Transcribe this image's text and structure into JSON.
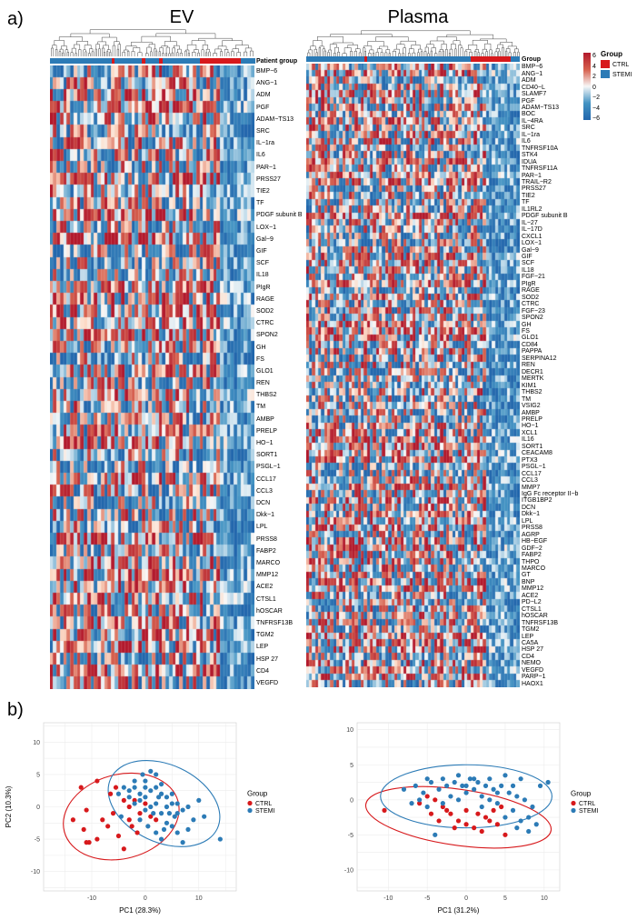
{
  "panel_a": {
    "label": "a)",
    "ev_title": "EV",
    "plasma_title": "Plasma"
  },
  "panel_b": {
    "label": "b)"
  },
  "ev_header": "Patient group",
  "plasma_header": "Group",
  "heat_legend": {
    "title": "Group",
    "ticks": [
      "6",
      "4",
      "2",
      "0",
      "−2",
      "−4",
      "−6"
    ],
    "items": [
      {
        "name": "CTRL",
        "color": "#d7191c"
      },
      {
        "name": "STEMI",
        "color": "#2c7bb6"
      }
    ]
  },
  "colors": {
    "ctrl": "#d7191c",
    "stemi": "#2c7bb6",
    "pos": "#b2182b",
    "neg": "#2166ac"
  },
  "chart_data": [
    {
      "type": "heatmap",
      "title": "EV",
      "column_annotation": "Patient group",
      "rows": [
        "BMP−6",
        "ANG−1",
        "ADM",
        "PGF",
        "ADAM−TS13",
        "SRC",
        "IL−1ra",
        "IL6",
        "PAR−1",
        "PRSS27",
        "TIE2",
        "TF",
        "PDGF subunit B",
        "LOX−1",
        "Gal−9",
        "GIF",
        "SCF",
        "IL18",
        "PIgR",
        "RAGE",
        "SOD2",
        "CTRC",
        "SPON2",
        "GH",
        "FS",
        "GLO1",
        "REN",
        "THBS2",
        "TM",
        "AMBP",
        "PRELP",
        "HO−1",
        "SORT1",
        "PSGL−1",
        "CCL17",
        "CCL3",
        "DCN",
        "Dkk−1",
        "LPL",
        "PRSS8",
        "FABP2",
        "MARCO",
        "MMP12",
        "ACE2",
        "CTSL1",
        "hOSCAR",
        "TNFRSF13B",
        "TGM2",
        "LEP",
        "HSP 27",
        "CD4",
        "VEGFD"
      ]
    },
    {
      "type": "heatmap",
      "title": "Plasma",
      "column_annotation": "Group",
      "rows": [
        "BMP−6",
        "ANG−1",
        "ADM",
        "CD40−L",
        "SLAMF7",
        "PGF",
        "ADAM−TS13",
        "BOC",
        "IL−4RA",
        "SRC",
        "IL−1ra",
        "IL6",
        "TNFRSF10A",
        "STK4",
        "IDUA",
        "TNFRSF11A",
        "PAR−1",
        "TRAIL−R2",
        "PRSS27",
        "TIE2",
        "TF",
        "IL1RL2",
        "PDGF subunit B",
        "IL−27",
        "IL−17D",
        "CXCL1",
        "LOX−1",
        "Gal−9",
        "GIF",
        "SCF",
        "IL18",
        "FGF−21",
        "PIgR",
        "RAGE",
        "SOD2",
        "CTRC",
        "FGF−23",
        "SPON2",
        "GH",
        "FS",
        "GLO1",
        "CD84",
        "PAPPA",
        "SERPINA12",
        "REN",
        "DECR1",
        "MERTK",
        "KIM1",
        "THBS2",
        "TM",
        "VSIG2",
        "AMBP",
        "PRELP",
        "HO−1",
        "XCL1",
        "IL16",
        "SORT1",
        "CEACAM8",
        "PTX3",
        "PSGL−1",
        "CCL17",
        "CCL3",
        "MMP7",
        "IgG Fc receptor II−b",
        "ITGB1BP2",
        "DCN",
        "Dkk−1",
        "LPL",
        "PRSS8",
        "AGRP",
        "HB−EGF",
        "GDF−2",
        "FABP2",
        "THPO",
        "MARCO",
        "GT",
        "BNP",
        "MMP12",
        "ACE2",
        "PD−L2",
        "CTSL1",
        "hOSCAR",
        "TNFRSF13B",
        "TGM2",
        "LEP",
        "CA5A",
        "HSP 27",
        "CD4",
        "NEMO",
        "VEGFD",
        "PARP−1",
        "HAOX1"
      ]
    },
    {
      "type": "scatter",
      "xlabel": "PC1 (28.3%)",
      "ylabel": "PC2 (10.3%)",
      "xlim": [
        -19,
        17
      ],
      "ylim": [
        -13,
        13
      ],
      "xticks": [
        -10,
        0,
        10
      ],
      "yticks": [
        -10,
        -5,
        0,
        5,
        10
      ],
      "legend_title": "Group",
      "legend_position": "right",
      "series": [
        {
          "name": "CTRL",
          "color": "#d7191c",
          "points": [
            [
              -12,
              3
            ],
            [
              -11,
              -0.5
            ],
            [
              -9,
              4
            ],
            [
              -6.5,
              2
            ],
            [
              -5.5,
              3
            ],
            [
              -13.5,
              -2
            ],
            [
              -11.5,
              -3.5
            ],
            [
              -9,
              -5
            ],
            [
              -10.5,
              -5.5
            ],
            [
              -11,
              -5.5
            ],
            [
              -6,
              -1
            ],
            [
              -7,
              -3
            ],
            [
              -5,
              -4.5
            ],
            [
              -4,
              -6.5
            ],
            [
              -3,
              -2
            ],
            [
              -2,
              1
            ],
            [
              -1,
              -1
            ],
            [
              0,
              0.5
            ],
            [
              1,
              -1.5
            ],
            [
              2,
              -2
            ],
            [
              -3,
              0
            ],
            [
              -4,
              1
            ],
            [
              -2.5,
              -3
            ],
            [
              -8,
              -2
            ],
            [
              -1.5,
              -4
            ]
          ]
        },
        {
          "name": "STEMI",
          "color": "#2c7bb6",
          "points": [
            [
              -4,
              3
            ],
            [
              -3,
              2.5
            ],
            [
              -2,
              3
            ],
            [
              -1,
              2
            ],
            [
              0,
              3
            ],
            [
              1,
              2.5
            ],
            [
              2,
              3
            ],
            [
              3,
              2
            ],
            [
              4,
              1.5
            ],
            [
              5,
              0.5
            ],
            [
              6,
              -1
            ],
            [
              7,
              -0.5
            ],
            [
              8,
              0
            ],
            [
              9,
              -2
            ],
            [
              10,
              1
            ],
            [
              11,
              -1.5
            ],
            [
              -3,
              1.5
            ],
            [
              -2,
              0.5
            ],
            [
              -1,
              1
            ],
            [
              0,
              -0.5
            ],
            [
              1,
              0
            ],
            [
              2,
              0.5
            ],
            [
              3,
              -1
            ],
            [
              4,
              -2.5
            ],
            [
              5,
              -3
            ],
            [
              6,
              -4
            ],
            [
              7,
              -5.5
            ],
            [
              8,
              -3.5
            ],
            [
              14,
              -5
            ],
            [
              -0.5,
              5
            ],
            [
              1,
              5.5
            ],
            [
              2,
              5
            ],
            [
              0,
              1.5
            ],
            [
              3,
              3.5
            ],
            [
              -1,
              -2
            ],
            [
              0.5,
              -3
            ],
            [
              2,
              -4
            ],
            [
              3,
              -5
            ],
            [
              -4.5,
              -1.5
            ],
            [
              4,
              0
            ],
            [
              5,
              2
            ],
            [
              6,
              0.5
            ],
            [
              -2,
              4
            ],
            [
              1.5,
              -1
            ],
            [
              2.5,
              1.5
            ],
            [
              4.5,
              -1
            ],
            [
              -5,
              2
            ],
            [
              0,
              4
            ],
            [
              5.5,
              -1.5
            ],
            [
              3.5,
              -3.5
            ]
          ]
        }
      ]
    },
    {
      "type": "scatter",
      "xlabel": "PC1 (31.2%)",
      "ylabel": "",
      "xlim": [
        -14,
        12
      ],
      "ylim": [
        -13,
        11
      ],
      "xticks": [
        -10,
        -5,
        0,
        5,
        10
      ],
      "yticks": [
        -10,
        -5,
        0,
        5,
        10
      ],
      "legend_title": "Group",
      "legend_position": "right",
      "series": [
        {
          "name": "CTRL",
          "color": "#d7191c",
          "points": [
            [
              -10.5,
              -1.5
            ],
            [
              -6,
              -0.5
            ],
            [
              -5,
              0.5
            ],
            [
              -4,
              0
            ],
            [
              -3,
              -1
            ],
            [
              -2,
              -2
            ],
            [
              -1,
              -3
            ],
            [
              0,
              -3.5
            ],
            [
              1,
              -4
            ],
            [
              2,
              -4.5
            ],
            [
              3,
              -3
            ],
            [
              4,
              -3.5
            ],
            [
              5,
              -5
            ],
            [
              -3.5,
              -3
            ],
            [
              -1.5,
              -4
            ],
            [
              2.5,
              -2.5
            ],
            [
              4.5,
              -1
            ],
            [
              -4.5,
              -2
            ],
            [
              0,
              -1.5
            ],
            [
              1.5,
              -2
            ],
            [
              3.5,
              -1.5
            ],
            [
              -2.5,
              -1.5
            ]
          ]
        },
        {
          "name": "STEMI",
          "color": "#2c7bb6",
          "points": [
            [
              -8,
              1.5
            ],
            [
              -6.5,
              2
            ],
            [
              -5.5,
              1
            ],
            [
              -4.5,
              2.5
            ],
            [
              -3.5,
              1.5
            ],
            [
              -2.5,
              2
            ],
            [
              -1.5,
              2.5
            ],
            [
              -0.5,
              2
            ],
            [
              0.5,
              3
            ],
            [
              1.5,
              2.5
            ],
            [
              2.5,
              2
            ],
            [
              3.5,
              1.5
            ],
            [
              4.5,
              2
            ],
            [
              5.5,
              1
            ],
            [
              6.5,
              0.5
            ],
            [
              7.5,
              0
            ],
            [
              8.5,
              -1
            ],
            [
              9.5,
              2
            ],
            [
              10.5,
              2.5
            ],
            [
              -5,
              3
            ],
            [
              -3,
              3
            ],
            [
              -1,
              3.5
            ],
            [
              1,
              3
            ],
            [
              3,
              3
            ],
            [
              5,
              3.5
            ],
            [
              7,
              3
            ],
            [
              -7,
              -0.5
            ],
            [
              -5,
              -1
            ],
            [
              -2,
              0.5
            ],
            [
              0,
              1
            ],
            [
              2,
              0.5
            ],
            [
              4,
              -0.5
            ],
            [
              6,
              -1.5
            ],
            [
              8,
              -2.5
            ],
            [
              9,
              -3.5
            ],
            [
              -4,
              -5
            ],
            [
              6.5,
              -4
            ],
            [
              8,
              -4.5
            ],
            [
              -6,
              0
            ],
            [
              -1,
              0
            ],
            [
              1,
              1.5
            ],
            [
              3,
              0
            ],
            [
              5,
              -2.5
            ],
            [
              7,
              -3
            ],
            [
              2,
              -1
            ],
            [
              -3,
              -0.5
            ],
            [
              0,
              2
            ],
            [
              4,
              1
            ],
            [
              6,
              2
            ]
          ]
        }
      ]
    }
  ],
  "pca_left": {
    "xticks": [
      "-10",
      "0",
      "10"
    ],
    "yticks": [
      "10",
      "5",
      "0",
      "-5",
      "-10"
    ],
    "xlabel": "PC1 (28.3%)",
    "ylabel": "PC2 (10.3%)"
  },
  "pca_right": {
    "xticks": [
      "-10",
      "-5",
      "0",
      "5",
      "10"
    ],
    "yticks": [
      "10",
      "5",
      "0",
      "-5",
      "-10"
    ],
    "xlabel": "PC1 (31.2%)"
  },
  "pca_legend": {
    "title": "Group",
    "ctrl": "CTRL",
    "stemi": "STEMI"
  }
}
